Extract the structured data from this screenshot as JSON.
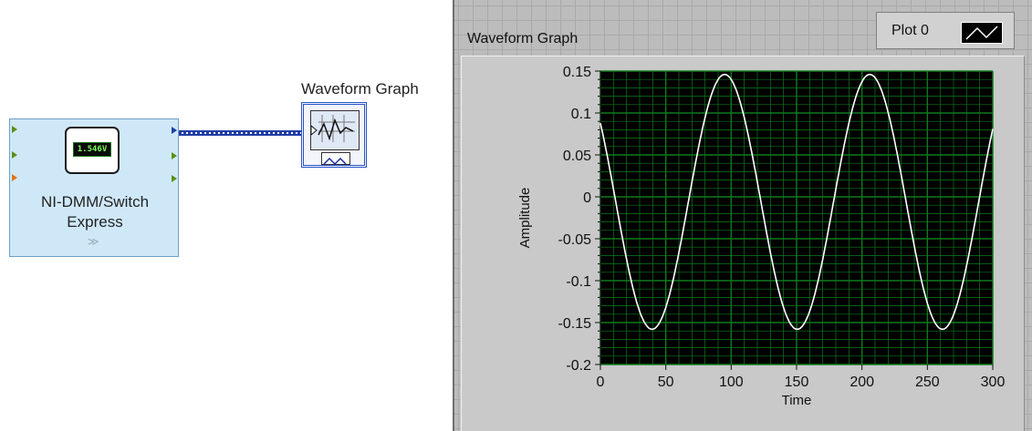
{
  "diagram": {
    "express_vi": {
      "title_line1": "NI-DMM/Switch",
      "title_line2": "Express",
      "display_reading": "1.546V",
      "expand_glyph": "≫"
    },
    "graph_terminal": {
      "label": "Waveform Graph"
    }
  },
  "panel": {
    "graph": {
      "label": "Waveform Graph",
      "legend_label": "Plot 0"
    }
  },
  "chart_data": {
    "type": "line",
    "title": "",
    "xlabel": "Time",
    "ylabel": "Amplitude",
    "xlim": [
      0,
      300
    ],
    "ylim": [
      -0.2,
      0.15
    ],
    "xticks": [
      "0",
      "50",
      "100",
      "150",
      "200",
      "250",
      "300"
    ],
    "yticks": [
      "0.15",
      "0.1",
      "0.05",
      "0",
      "-0.05",
      "-0.1",
      "-0.15",
      "-0.2"
    ],
    "grid": true,
    "background": "#000000",
    "grid_color": "#0f7a1c",
    "line_color": "#ffffff",
    "series": [
      {
        "amplitude": 0.152,
        "offset": -0.006,
        "period": 111,
        "peak_at": 95,
        "x_start": 0,
        "x_end": 300
      }
    ]
  }
}
